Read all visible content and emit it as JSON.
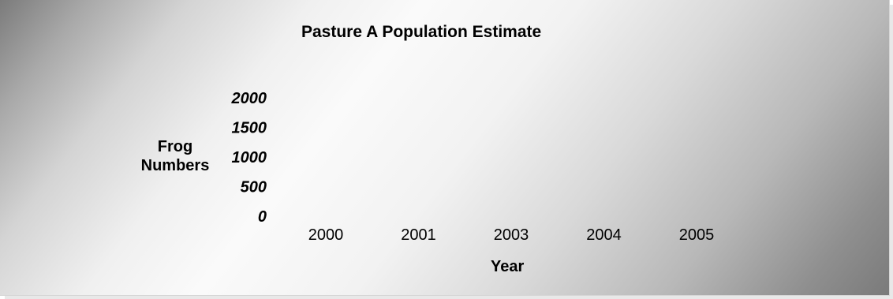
{
  "chart_data": {
    "type": "bar",
    "title": "Pasture A Population Estimate",
    "xlabel": "Year",
    "ylabel_lines": [
      "Frog",
      "Numbers"
    ],
    "categories": [
      "2000",
      "2001",
      "2003",
      "2004",
      "2005"
    ],
    "y_ticks": [
      "0",
      "500",
      "1000",
      "1500",
      "2000"
    ],
    "ylim": [
      0,
      2000
    ],
    "values": [
      0,
      0,
      0,
      0,
      0
    ],
    "grid": false,
    "legend": "none",
    "colors": {
      "background_dark": "#7b7b7b",
      "background_light": "#fafafa",
      "text": "#000000"
    }
  }
}
